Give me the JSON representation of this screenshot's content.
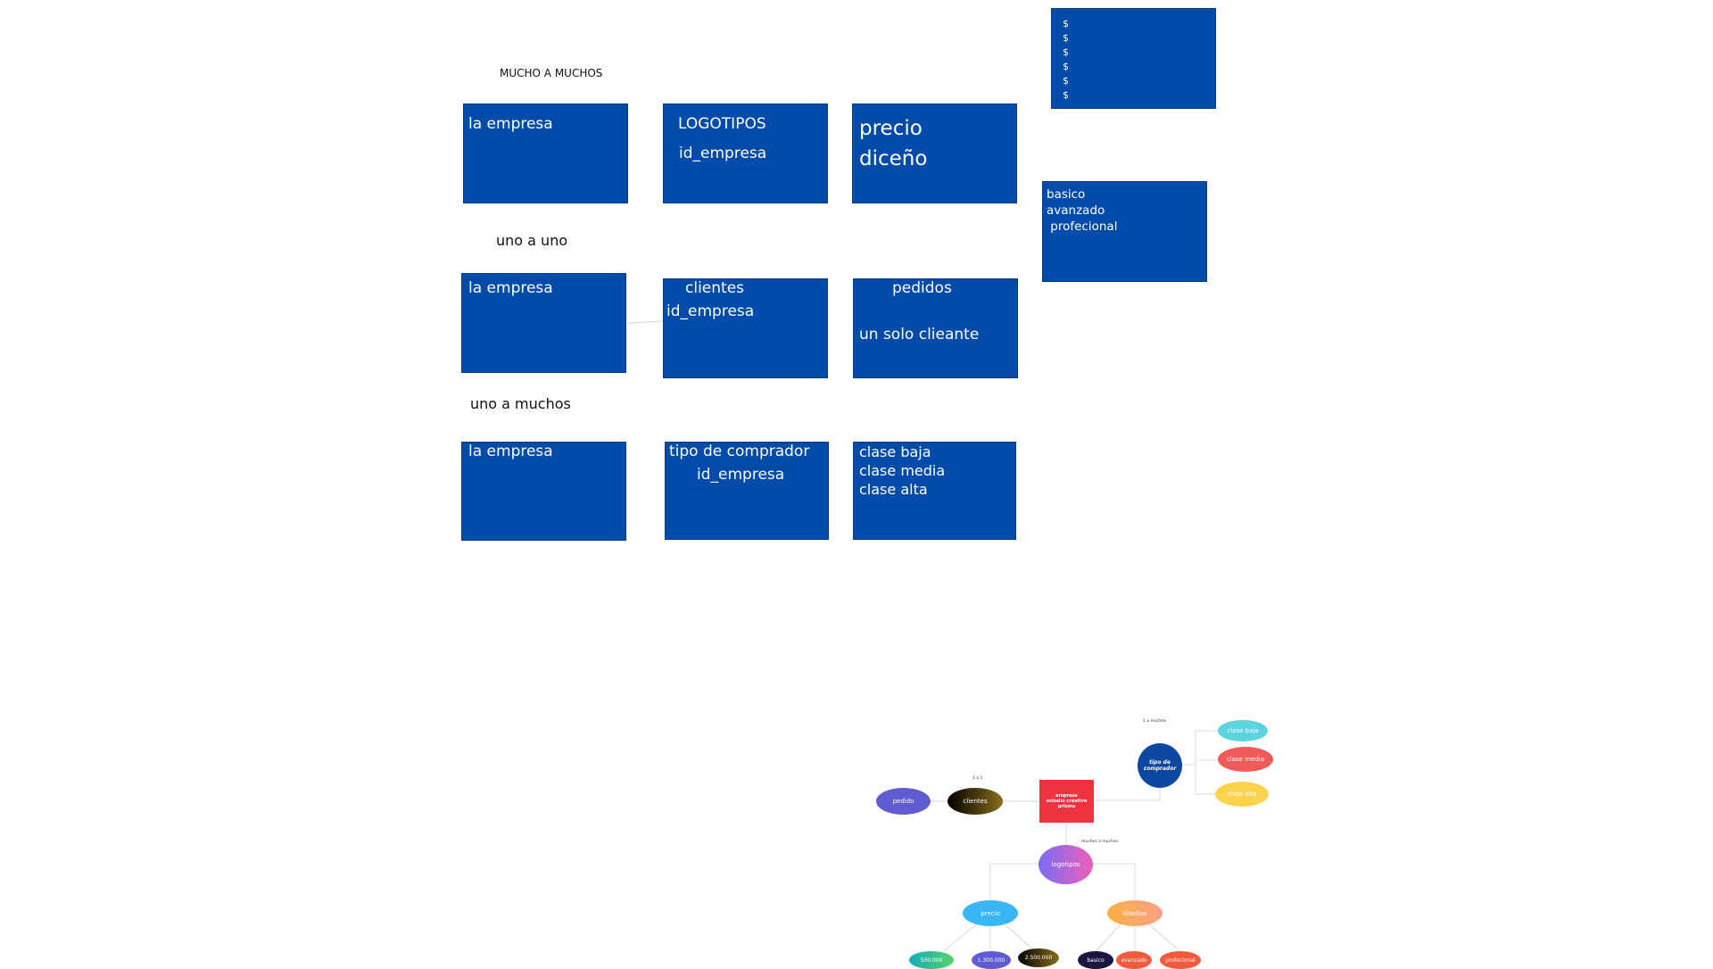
{
  "labels": {
    "mucho_a_muchos": "MUCHO A MUCHOS",
    "uno_a_uno": "uno a uno",
    "uno_a_muchos": "uno a muchos"
  },
  "row1": {
    "empresa": "la empresa",
    "logotipos_title": "LOGOTIPOS",
    "logotipos_id": "id_empresa",
    "precio": "precio",
    "diseno": "diceño"
  },
  "row2": {
    "empresa": "la empresa",
    "clientes_title": "clientes",
    "clientes_id": "id_empresa",
    "pedidos_title": "pedidos",
    "pedidos_desc": "un solo clieante"
  },
  "row3": {
    "empresa": "la empresa",
    "comprador_title": "tipo de comprador",
    "comprador_id": "id_empresa",
    "clases": [
      "clase baja",
      "clase media",
      "clase alta"
    ]
  },
  "prices_box": [
    "$",
    "$",
    "$",
    "$",
    "$",
    "$"
  ],
  "plans_box": [
    "basico",
    "avanzado",
    " profecional"
  ],
  "mindmap": {
    "center_line1": "empresa",
    "center_line2": "estudio creativo prisma",
    "tipo_comprador_line1": "tipo de",
    "tipo_comprador_line2": "comprador",
    "label_1a_muchos": "1 a muchos",
    "label_1a1": "1 a 1",
    "label_muchos": "muchos a muchos",
    "clientes": "clientes",
    "pedido": "pedido",
    "clase_baja": "clase baja",
    "clase_media": "clase media",
    "clase_alta": "clase alta",
    "logotipos": "logotipos",
    "precio": "precio",
    "disenos": "diseños",
    "p1": "500.000",
    "p2": "1.300.000",
    "p3": "2.500.000",
    "d1": "basico",
    "d2": "avanzado",
    "d3": "profecional"
  },
  "colors": {
    "box_blue": "#024bab",
    "center_red": "#ef3340",
    "tipo_blue": "#0d47a1"
  }
}
